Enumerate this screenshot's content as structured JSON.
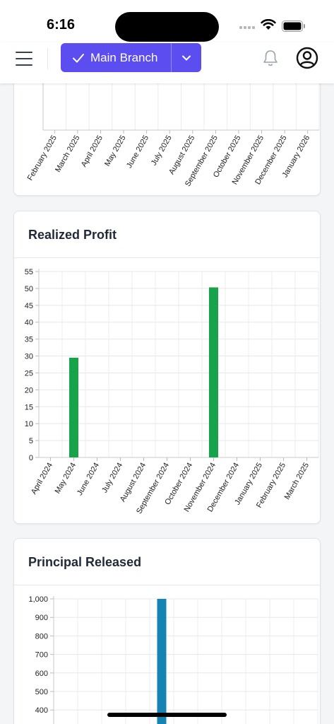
{
  "status_bar": {
    "time": "6:16"
  },
  "header": {
    "branch_label": "Main Branch"
  },
  "charts": [
    {
      "title": "",
      "chart_data": {
        "type": "bar",
        "categories": [
          "February 2025",
          "March 2025",
          "April 2025",
          "May 2025",
          "June 2025",
          "July 2025",
          "August 2025",
          "September 2025",
          "October 2025",
          "November 2025",
          "December 2025",
          "January 2026"
        ],
        "values": [
          0,
          0,
          0,
          0,
          0,
          0,
          0,
          0,
          0,
          0,
          0,
          0
        ],
        "title": "",
        "xlabel": "",
        "ylabel": ""
      }
    },
    {
      "title": "Realized Profit",
      "chart_data": {
        "type": "bar",
        "categories": [
          "April 2024",
          "May 2024",
          "June 2024",
          "July 2024",
          "August 2024",
          "September 2024",
          "October 2024",
          "November 2024",
          "December 2024",
          "January 2025",
          "February 2025",
          "March 2025"
        ],
        "values": [
          0,
          29.5,
          0,
          0,
          0,
          0,
          0,
          50.3,
          0,
          0,
          0,
          0
        ],
        "yticks": [
          0,
          5,
          10,
          15,
          20,
          25,
          30,
          35,
          40,
          45,
          50,
          55
        ],
        "ylim": [
          0,
          55
        ],
        "color": "#16a34a",
        "title": "Realized Profit",
        "xlabel": "",
        "ylabel": ""
      }
    },
    {
      "title": "Principal Released",
      "chart_data": {
        "type": "bar",
        "ytick_labels": [
          "400",
          "500",
          "600",
          "700",
          "800",
          "900",
          "1,000"
        ],
        "yticks": [
          400,
          500,
          600,
          700,
          800,
          900,
          1000
        ],
        "ylim": [
          0,
          1000
        ],
        "bar_values": [
          1000
        ],
        "color": "#1584b4",
        "title": "Principal Released",
        "xlabel": "",
        "ylabel": ""
      }
    }
  ]
}
